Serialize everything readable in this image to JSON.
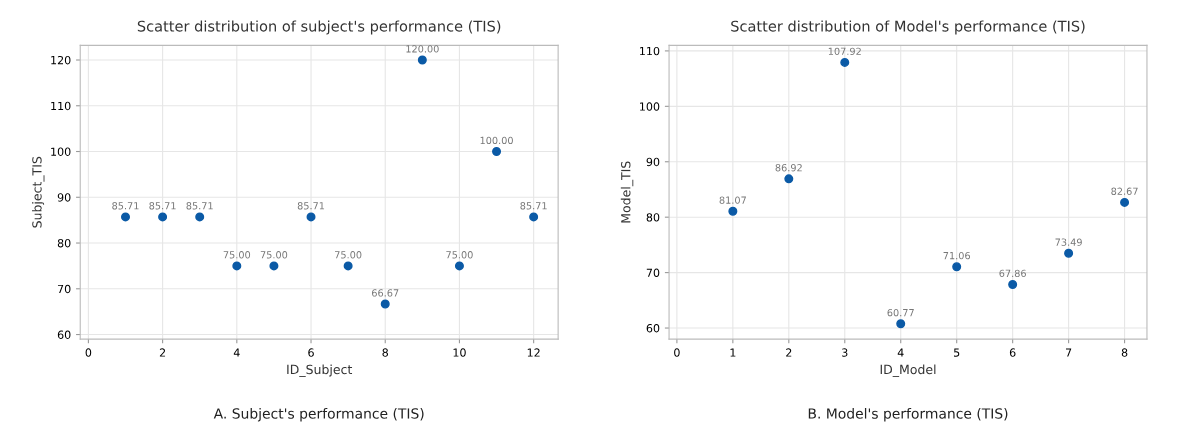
{
  "chart_data": [
    {
      "type": "scatter",
      "title": "Scatter distribution of subject's performance (TIS)",
      "xlabel": "ID_Subject",
      "ylabel": "Subject_TIS",
      "x": [
        1,
        2,
        3,
        4,
        5,
        6,
        7,
        8,
        9,
        10,
        11,
        12
      ],
      "series": [
        {
          "color": "#0b5aa6",
          "values": [
            85.71,
            85.71,
            85.71,
            75.0,
            75.0,
            85.71,
            75.0,
            66.67,
            120.0,
            75.0,
            100.0,
            85.71
          ],
          "value_labels": [
            "85.71",
            "85.71",
            "85.71",
            "75.00",
            "75.00",
            "85.71",
            "75.00",
            "66.67",
            "120.00",
            "75.00",
            "100.00",
            "85.71"
          ]
        }
      ],
      "xlim": [
        -0.22,
        12.66
      ],
      "ylim": [
        59,
        123.2
      ],
      "xticks": [
        0,
        2,
        4,
        6,
        8,
        10,
        12
      ],
      "yticks": [
        60,
        70,
        80,
        90,
        100,
        110,
        120
      ],
      "grid": true,
      "marker": "circle",
      "annotations": [
        "A. Subject's performance (TIS)"
      ]
    },
    {
      "type": "scatter",
      "title": "Scatter distribution of Model's performance (TIS)",
      "xlabel": "ID_Model",
      "ylabel": "Model_TIS",
      "x": [
        1,
        2,
        3,
        4,
        5,
        6,
        7,
        8
      ],
      "series": [
        {
          "color": "#0b5aa6",
          "values": [
            81.07,
            86.92,
            107.92,
            60.77,
            71.06,
            67.86,
            73.49,
            82.67
          ],
          "value_labels": [
            "81.07",
            "86.92",
            "107.92",
            "60.77",
            "71.06",
            "67.86",
            "73.49",
            "82.67"
          ]
        }
      ],
      "xlim": [
        -0.14,
        8.4
      ],
      "ylim": [
        58,
        111
      ],
      "xticks": [
        0,
        1,
        2,
        3,
        4,
        5,
        6,
        7,
        8
      ],
      "yticks": [
        60,
        70,
        80,
        90,
        100,
        110
      ],
      "grid": true,
      "marker": "circle",
      "annotations": [
        "B. Model's performance (TIS)"
      ]
    }
  ]
}
